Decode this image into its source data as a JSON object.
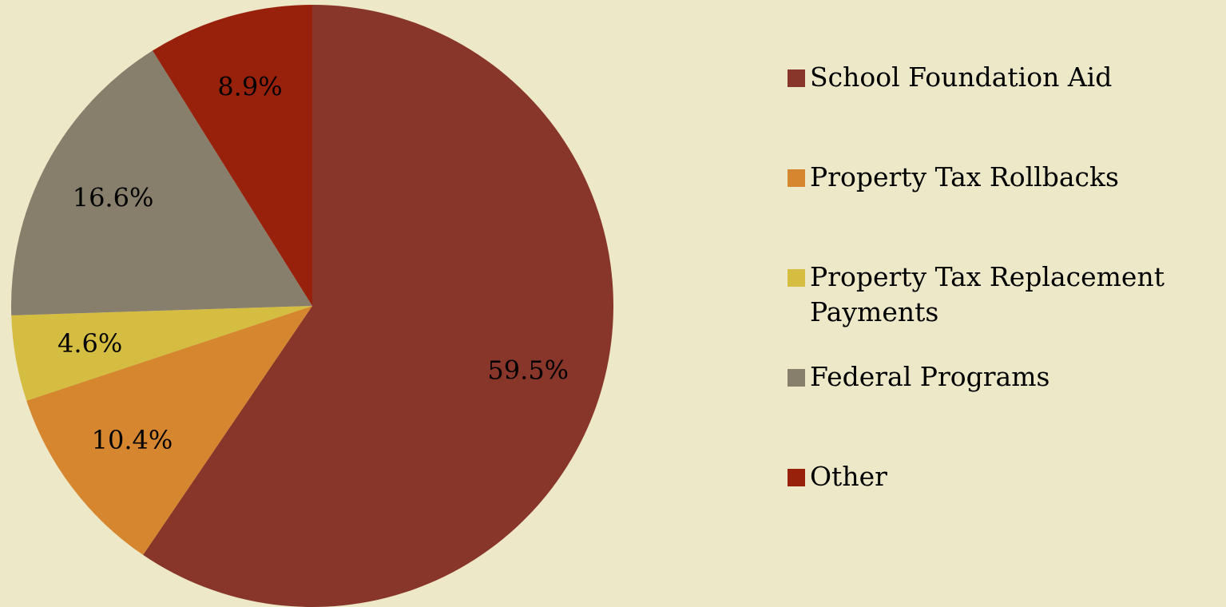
{
  "chart_data": {
    "type": "pie",
    "categories": [
      "School Foundation Aid",
      "Property Tax Rollbacks",
      "Property Tax Replacement Payments",
      "Federal Programs",
      "Other"
    ],
    "values": [
      59.5,
      10.4,
      4.6,
      16.6,
      8.9
    ],
    "value_labels": [
      "59.5%",
      "10.4%",
      "4.6%",
      "16.6%",
      "8.9%"
    ],
    "colors": [
      "#88352a",
      "#d6862f",
      "#d4bd40",
      "#877e6c",
      "#98210c"
    ],
    "legend": "right"
  }
}
